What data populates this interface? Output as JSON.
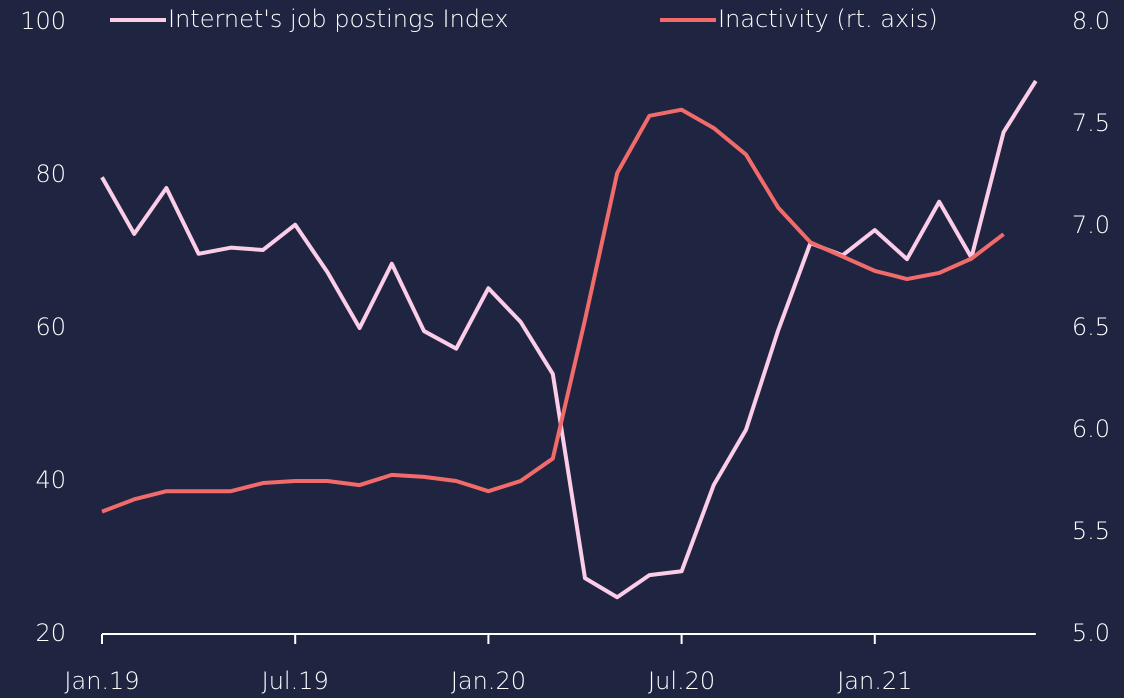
{
  "chart_data": {
    "type": "line",
    "categories": [
      "Jan.19",
      null,
      null,
      null,
      null,
      null,
      "Jul.19",
      null,
      null,
      null,
      null,
      null,
      "Jan.20",
      null,
      null,
      null,
      null,
      null,
      "Jul.20",
      null,
      null,
      null,
      null,
      null,
      "Jan.21",
      null,
      null,
      null,
      null,
      null
    ],
    "series": [
      {
        "name": "Internet's job postings Index",
        "color": "#fbcde8",
        "values": [
          79.7,
          72.3,
          78.3,
          69.7,
          70.5,
          70.2,
          73.5,
          67.3,
          60.0,
          68.4,
          59.6,
          57.3,
          65.2,
          60.8,
          54.0,
          27.3,
          24.8,
          27.7,
          28.2,
          39.5,
          46.7,
          59.7,
          71.1,
          69.5,
          72.8,
          69.0,
          76.5,
          69.2,
          85.6,
          92.3
        ]
      },
      {
        "name": "Inactivity (rt. axis)",
        "color": "#f26b6b",
        "axis": "y2",
        "values": [
          5.6,
          5.66,
          5.7,
          5.7,
          5.7,
          5.74,
          5.75,
          5.75,
          5.73,
          5.78,
          5.77,
          5.75,
          5.7,
          5.75,
          5.86,
          6.54,
          7.26,
          7.54,
          7.57,
          7.48,
          7.35,
          7.09,
          6.92,
          6.85,
          6.78,
          6.74,
          6.77,
          6.84,
          6.96,
          null
        ]
      }
    ],
    "ylim": [
      20,
      100
    ],
    "yticks": [
      20,
      40,
      60,
      80,
      100
    ],
    "y2lim": [
      5,
      8
    ],
    "y2ticks": [
      {
        "value": 5,
        "label": "5.0"
      },
      {
        "value": 5.5,
        "label": "5.5"
      },
      {
        "value": 6,
        "label": "6.0"
      },
      {
        "value": 6.5,
        "label": "6.5"
      },
      {
        "value": 7,
        "label": "7.0"
      },
      {
        "value": 7.5,
        "label": "7.5"
      },
      {
        "value": 8,
        "label": "8.0"
      }
    ],
    "legend": "top"
  }
}
